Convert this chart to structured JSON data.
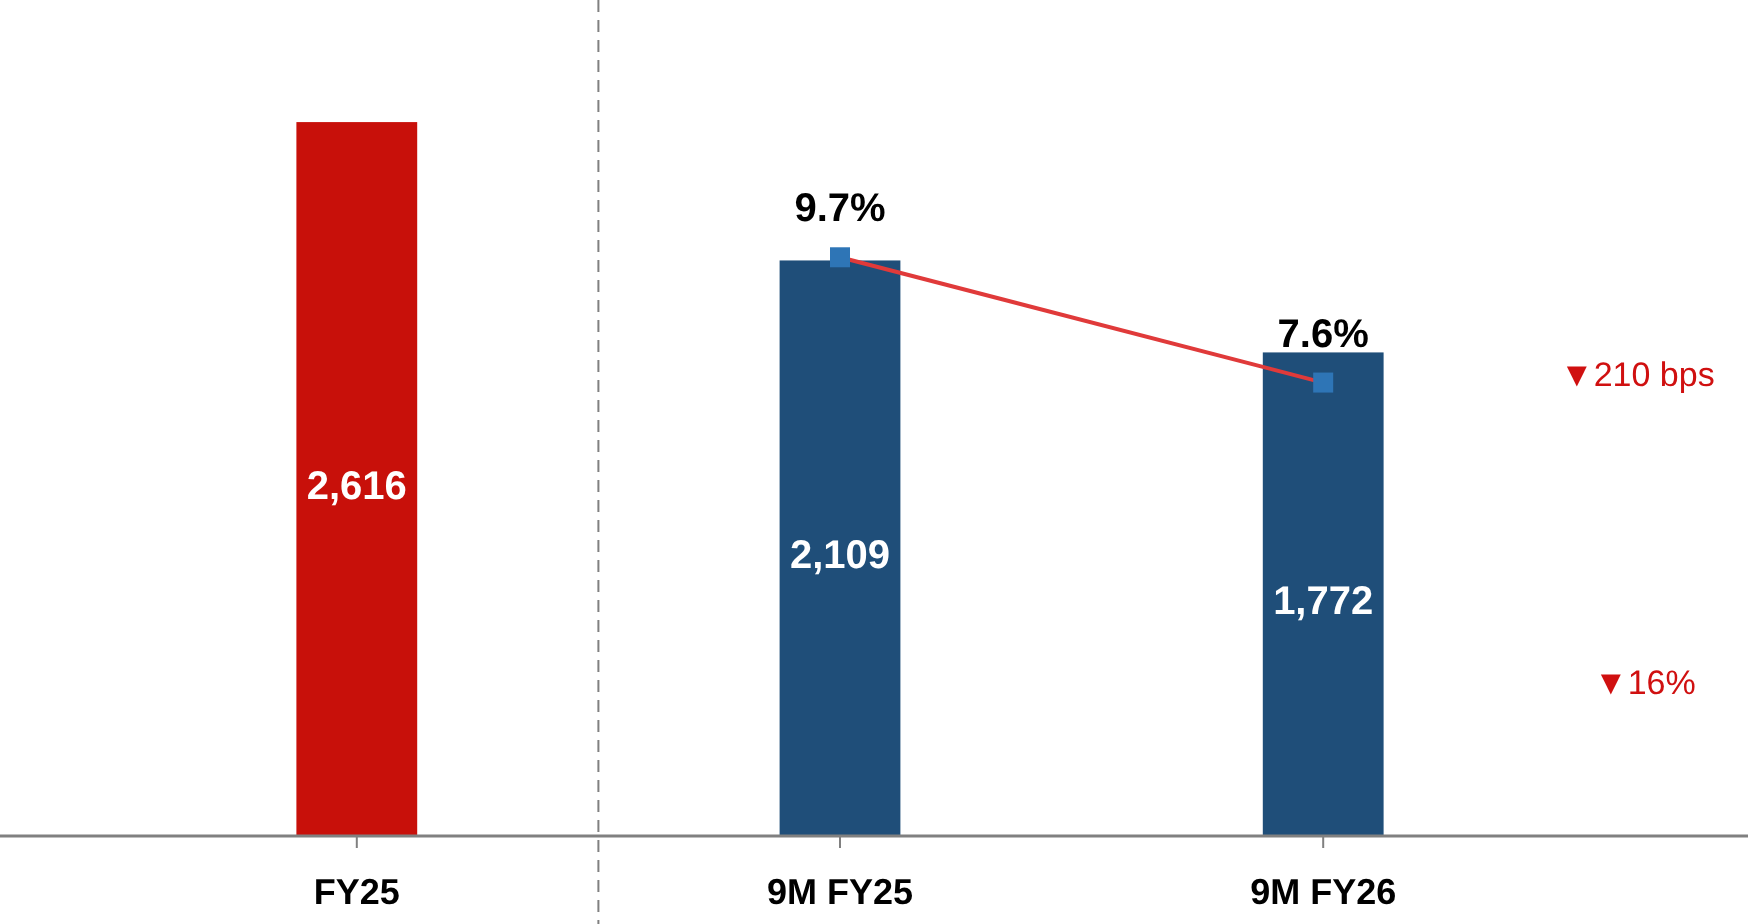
{
  "chart_data": {
    "type": "bar",
    "categories": [
      "FY25",
      "9M FY25",
      "9M FY26"
    ],
    "series": [
      {
        "values": [
          2616,
          2109,
          1772
        ],
        "colors": [
          "#c8100a",
          "#1f4e79",
          "#1f4e79"
        ],
        "value_labels": [
          "2,616",
          "2,109",
          "1,772"
        ]
      },
      {
        "type": "line",
        "axis": "y2",
        "color": "#e03a3a",
        "values": [
          null,
          9.7,
          7.6
        ],
        "value_labels": [
          null,
          "9.7%",
          "7.6%"
        ],
        "marker": "square"
      }
    ],
    "tick_labels": "x",
    "annotations": [
      "▼210 bps",
      "▼16%"
    ]
  }
}
